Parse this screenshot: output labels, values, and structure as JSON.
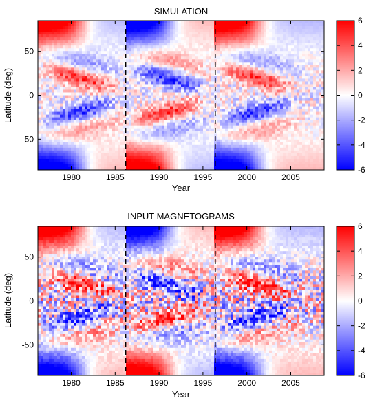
{
  "chart_data": [
    {
      "type": "heatmap",
      "title": "SIMULATION",
      "xlabel": "Year",
      "ylabel": "Latitude (deg)",
      "xlim": [
        1976.2,
        2008.8
      ],
      "ylim": [
        -85,
        85
      ],
      "x_ticks": [
        1980,
        1985,
        1990,
        1995,
        2000,
        2005
      ],
      "y_ticks": [
        50,
        0,
        -50
      ],
      "colorbar": {
        "range": [
          -6,
          6
        ],
        "ticks": [
          6,
          4,
          2,
          0,
          -2,
          -4,
          -6
        ],
        "colors": [
          "#0000ff",
          "#ffffff",
          "#ff0000"
        ]
      },
      "cycle_markers": [
        1986.2,
        1996.4
      ],
      "cycles": [
        {
          "start": 1976.2,
          "end": 1986.2,
          "north_polar_sign": 1,
          "butterfly_north_sign": 1
        },
        {
          "start": 1986.2,
          "end": 1996.4,
          "north_polar_sign": -1,
          "butterfly_north_sign": -1
        },
        {
          "start": 1996.4,
          "end": 2008.8,
          "north_polar_sign": 1,
          "butterfly_north_sign": 1
        }
      ],
      "noise": 0.35
    },
    {
      "type": "heatmap",
      "title": "INPUT MAGNETOGRAMS",
      "xlabel": "Year",
      "ylabel": "Latitude (deg)",
      "xlim": [
        1976.2,
        2008.8
      ],
      "ylim": [
        -85,
        85
      ],
      "x_ticks": [
        1980,
        1985,
        1990,
        1995,
        2000,
        2005
      ],
      "y_ticks": [
        50,
        0,
        -50
      ],
      "colorbar": {
        "range": [
          -6,
          6
        ],
        "ticks": [
          6,
          4,
          2,
          0,
          -2,
          -4,
          -6
        ],
        "colors": [
          "#0000ff",
          "#ffffff",
          "#ff0000"
        ]
      },
      "cycle_markers": [
        1986.2,
        1996.4
      ],
      "cycles": [
        {
          "start": 1976.2,
          "end": 1986.2,
          "north_polar_sign": 1,
          "butterfly_north_sign": 1
        },
        {
          "start": 1986.2,
          "end": 1996.4,
          "north_polar_sign": -1,
          "butterfly_north_sign": -1
        },
        {
          "start": 1996.4,
          "end": 2008.8,
          "north_polar_sign": 1,
          "butterfly_north_sign": 1
        }
      ],
      "noise": 0.75
    }
  ]
}
